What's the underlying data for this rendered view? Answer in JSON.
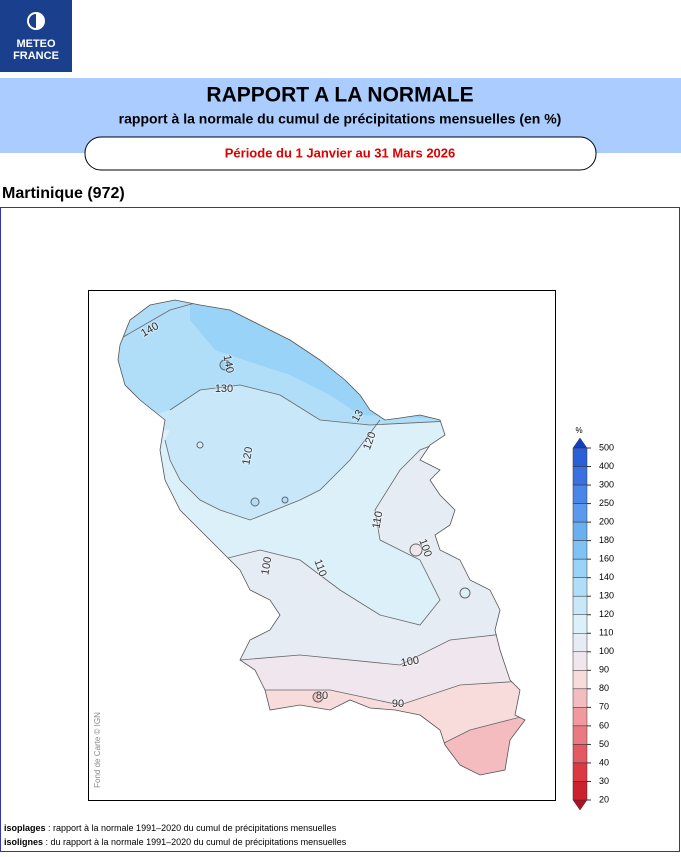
{
  "logo": {
    "line1": "METEO",
    "line2": "FRANCE"
  },
  "header": {
    "title": "RAPPORT A LA NORMALE",
    "subtitle": "rapport à la normale du cumul de précipitations mensuelles (en %)",
    "period": "Période du 1 Janvier au 31 Mars 2026"
  },
  "region": "Martinique (972)",
  "map": {
    "credit": "Fond de Carte © IGN",
    "contour_labels": [
      "140",
      "140",
      "130",
      "13",
      "120",
      "120",
      "110",
      "110",
      "100",
      "100",
      "100",
      "90",
      "80"
    ]
  },
  "legend": {
    "unit": "%",
    "levels": [
      500,
      400,
      300,
      250,
      200,
      180,
      160,
      140,
      130,
      120,
      110,
      100,
      90,
      80,
      70,
      60,
      50,
      40,
      30,
      20
    ],
    "colors": [
      "#2a5fd8",
      "#3a70e0",
      "#4a85e8",
      "#5a9aec",
      "#6aaff0",
      "#7fc3f4",
      "#99d3f7",
      "#b0def8",
      "#c8e8fa",
      "#dcf0fa",
      "#e6ecf4",
      "#efe6ee",
      "#f8dcdc",
      "#f5bcc0",
      "#f09aa0",
      "#ea7a82",
      "#e35a62",
      "#db3a42",
      "#cc2030"
    ],
    "above_color": "#1040c0",
    "below_color": "#b01020"
  },
  "footer": [
    {
      "term": "isoplages",
      "text": " : rapport à la normale 1991–2020 du cumul de précipitations mensuelles"
    },
    {
      "term": "isolignes",
      "text": " : du rapport à la normale 1991–2020 du cumul de précipitations mensuelles"
    }
  ]
}
